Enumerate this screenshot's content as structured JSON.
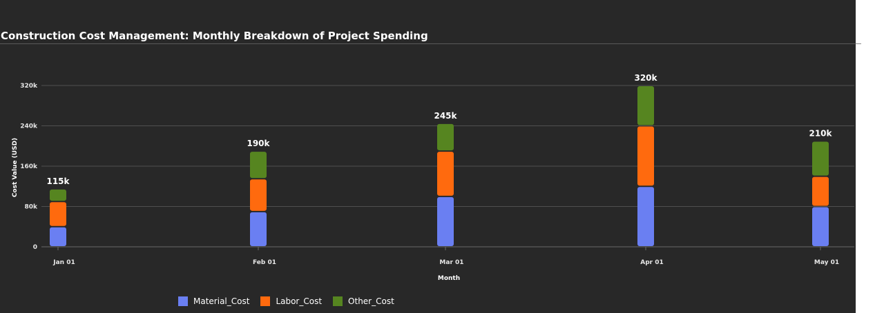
{
  "chart_data": {
    "type": "bar",
    "stacked": true,
    "title": "Construction Cost Management: Monthly Breakdown of Project Spending",
    "xlabel": "Month",
    "ylabel": "Cost Value (USD)",
    "categories": [
      "Jan 01",
      "Feb 01",
      "Mar 01",
      "Apr 01",
      "May 01"
    ],
    "series": [
      {
        "name": "Material_Cost",
        "color": "#6a7ff2",
        "values": [
          40000,
          70000,
          100000,
          120000,
          80000
        ]
      },
      {
        "name": "Labor_Cost",
        "color": "#ff6a0e",
        "values": [
          50000,
          65000,
          90000,
          120000,
          60000
        ]
      },
      {
        "name": "Other_Cost",
        "color": "#568520",
        "values": [
          25000,
          55000,
          55000,
          80000,
          70000
        ]
      }
    ],
    "totals": [
      "115k",
      "190k",
      "245k",
      "320k",
      "210k"
    ],
    "yticks": [
      {
        "value": 0,
        "label": "0"
      },
      {
        "value": 80000,
        "label": "80k"
      },
      {
        "value": 160000,
        "label": "160k"
      },
      {
        "value": 240000,
        "label": "240k"
      },
      {
        "value": 320000,
        "label": "320k"
      }
    ],
    "ylim": [
      0,
      320000
    ],
    "grid": true,
    "legend_position": "bottom-left",
    "background": "#282828"
  }
}
